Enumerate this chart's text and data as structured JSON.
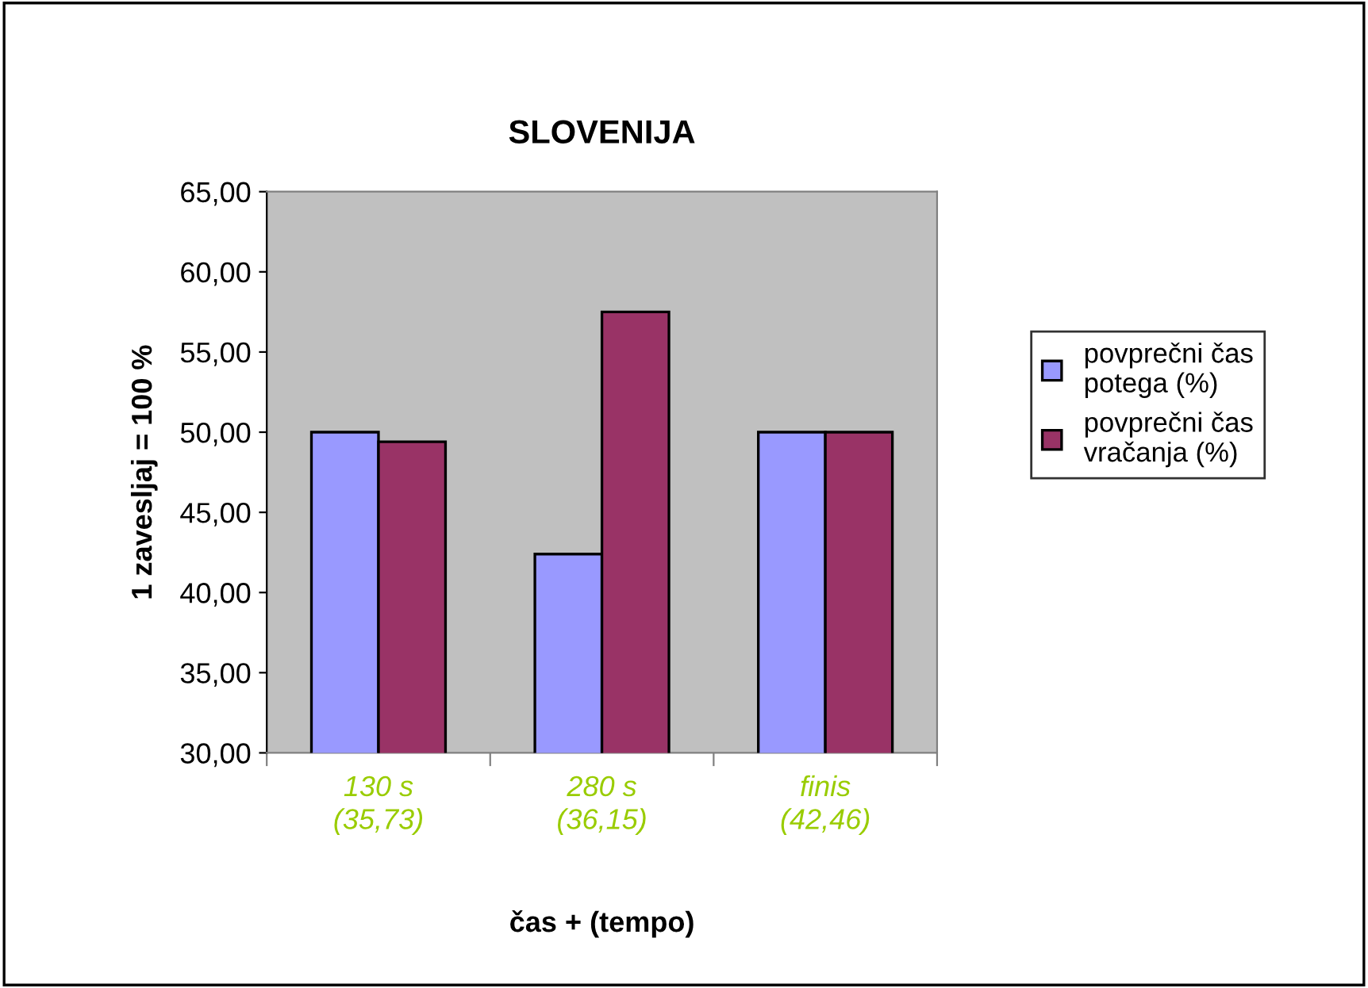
{
  "chart_data": {
    "type": "bar",
    "title": "SLOVENIJA",
    "xlabel": "čas + (tempo)",
    "ylabel": "1 zavesljaj = 100 %",
    "categories": [
      "130 s\n(35,73)",
      "280 s\n(36,15)",
      "finis\n(42,46)"
    ],
    "series": [
      {
        "name": "povprečni čas\npotega (%)",
        "color": "#9999ff",
        "values": [
          50.0,
          42.4,
          50.0
        ]
      },
      {
        "name": "povprečni čas\nvračanja (%)",
        "color": "#993366",
        "values": [
          49.4,
          57.5,
          50.0
        ]
      }
    ],
    "ylim": [
      30,
      65
    ],
    "yticks": [
      {
        "value": 30,
        "label": "30,00"
      },
      {
        "value": 35,
        "label": "35,00"
      },
      {
        "value": 40,
        "label": "40,00"
      },
      {
        "value": 45,
        "label": "45,00"
      },
      {
        "value": 50,
        "label": "50,00"
      },
      {
        "value": 55,
        "label": "55,00"
      },
      {
        "value": 60,
        "label": "60,00"
      },
      {
        "value": 65,
        "label": "65,00"
      }
    ],
    "grid": false,
    "legend": "right"
  }
}
